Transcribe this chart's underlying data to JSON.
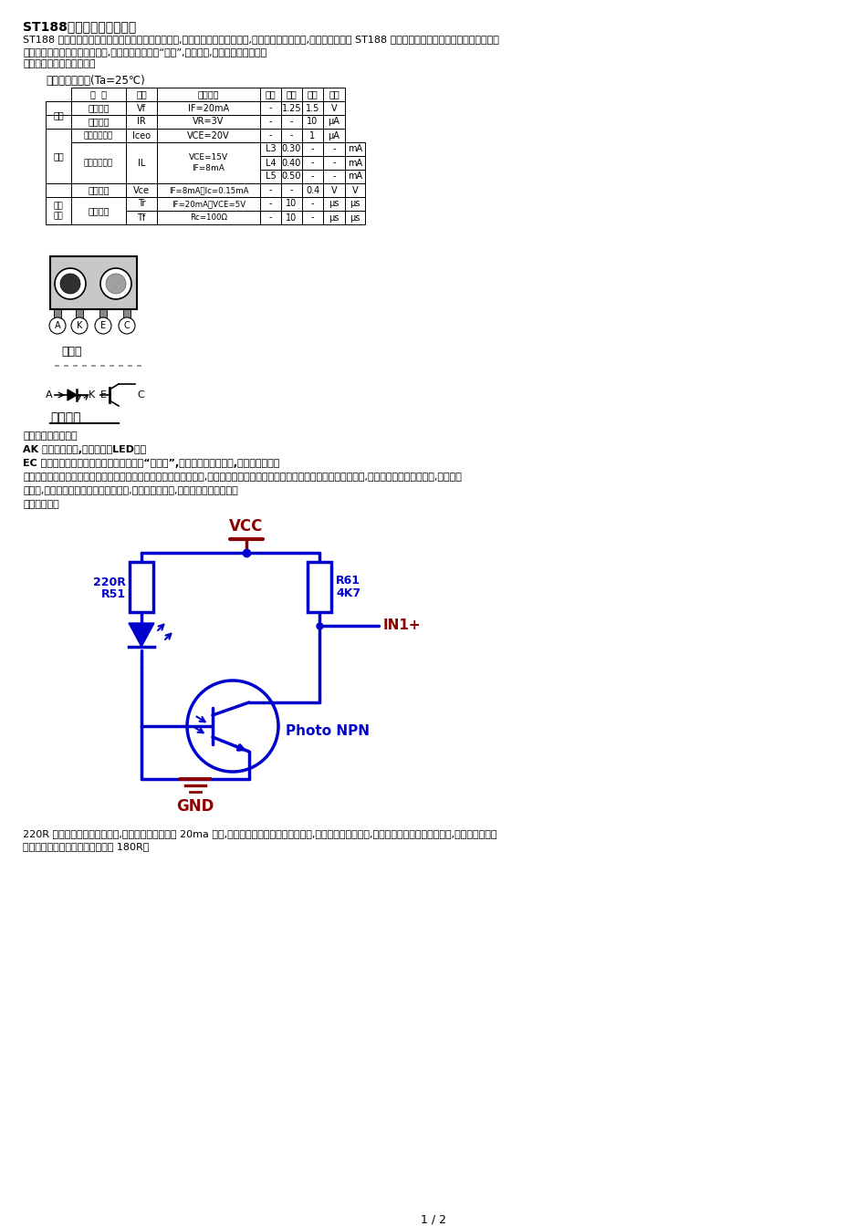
{
  "title": "ST188光电式传感器的应用",
  "bg_color": "#ffffff",
  "blue": "#0000cd",
  "dark_red": "#8b0000",
  "black": "#000000",
  "table_title": "三、光电特性：(Ta=25℃)",
  "section_bottom_view": "底视图",
  "section_internal": "内部电路",
  "page_num": "1 / 2",
  "vcc_label": "VCC",
  "gnd_label": "GND",
  "r61_label": "R61",
  "r61_val": "4K7",
  "r51_label": "220R",
  "r51_label2": "R51",
  "in1_label": "IN1+",
  "photo_label": "Photo NPN"
}
